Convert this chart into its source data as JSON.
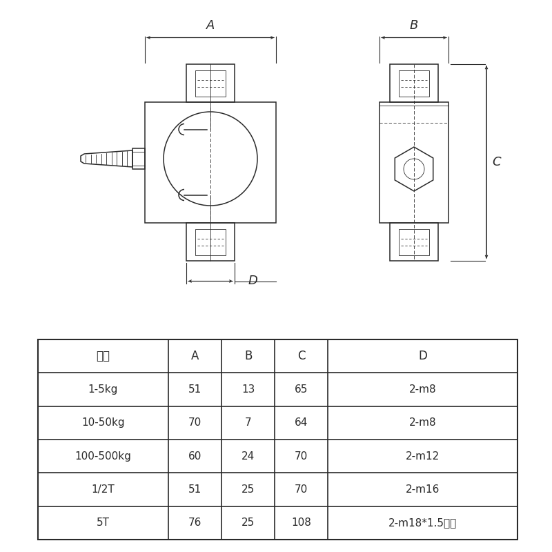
{
  "bg_color": "#ffffff",
  "table_headers": [
    "量程",
    "A",
    "B",
    "C",
    "D"
  ],
  "table_rows": [
    [
      "1-5kg",
      "51",
      "13",
      "65",
      "2-m8"
    ],
    [
      "10-50kg",
      "70",
      "7",
      "64",
      "2-m8"
    ],
    [
      "100-500kg",
      "60",
      "24",
      "70",
      "2-m12"
    ],
    [
      "1/2T",
      "51",
      "25",
      "70",
      "2-m16"
    ],
    [
      "5T",
      "76",
      "25",
      "108",
      "2-m18*1.5细牙"
    ]
  ],
  "label_A": "A",
  "label_B": "B",
  "label_C": "C",
  "label_D": "D",
  "line_color": "#2a2a2a",
  "lw_main": 1.1,
  "lw_thin": 0.6,
  "lw_dim": 0.8
}
